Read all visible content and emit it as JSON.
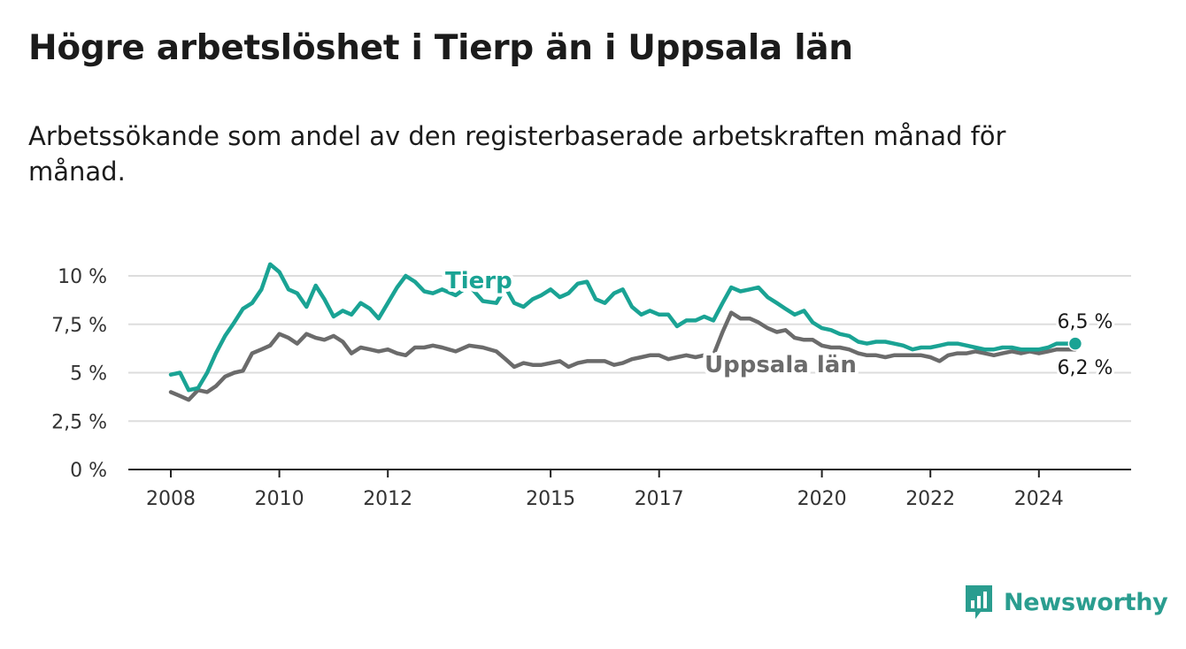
{
  "title": "Högre arbetslöshet i Tierp än i Uppsala län",
  "subtitle": "Arbetssökande som andel av den registerbaserade arbetskraften månad för månad.",
  "brand": {
    "name": "Newsworthy",
    "icon": "bar-chart-logo-icon",
    "color": "#2a9d8f"
  },
  "chart_data": {
    "type": "line",
    "title": "Högre arbetslöshet i Tierp än i Uppsala län",
    "subtitle": "Arbetssökande som andel av den registerbaserade arbetskraften månad för månad.",
    "x_ticks": [
      "2008",
      "2010",
      "2012",
      "2015",
      "2017",
      "2020",
      "2022",
      "2024"
    ],
    "y_ticks": [
      "0 %",
      "2,5 %",
      "5 %",
      "7,5 %",
      "10 %"
    ],
    "y_tick_values": [
      0,
      2.5,
      5,
      7.5,
      10
    ],
    "ylim": [
      0,
      10
    ],
    "xlim": [
      2007.2,
      2025.0
    ],
    "grid": true,
    "series": [
      {
        "name": "Tierp",
        "color": "#1aa394",
        "end_label": "6,5 %",
        "x": [
          2008.0,
          2008.17,
          2008.33,
          2008.5,
          2008.67,
          2008.83,
          2009.0,
          2009.17,
          2009.33,
          2009.5,
          2009.67,
          2009.83,
          2010.0,
          2010.17,
          2010.33,
          2010.5,
          2010.67,
          2010.83,
          2011.0,
          2011.17,
          2011.33,
          2011.5,
          2011.67,
          2011.83,
          2012.0,
          2012.17,
          2012.33,
          2012.5,
          2012.67,
          2012.83,
          2013.0,
          2013.25,
          2013.5,
          2013.75,
          2014.0,
          2014.17,
          2014.33,
          2014.5,
          2014.67,
          2014.83,
          2015.0,
          2015.17,
          2015.33,
          2015.5,
          2015.67,
          2015.83,
          2016.0,
          2016.17,
          2016.33,
          2016.5,
          2016.67,
          2016.83,
          2017.0,
          2017.17,
          2017.33,
          2017.5,
          2017.67,
          2017.83,
          2018.0,
          2018.17,
          2018.33,
          2018.5,
          2018.67,
          2018.83,
          2019.0,
          2019.17,
          2019.33,
          2019.5,
          2019.67,
          2019.83,
          2020.0,
          2020.17,
          2020.33,
          2020.5,
          2020.67,
          2020.83,
          2021.0,
          2021.17,
          2021.33,
          2021.5,
          2021.67,
          2021.83,
          2022.0,
          2022.17,
          2022.33,
          2022.5,
          2022.67,
          2022.83,
          2023.0,
          2023.17,
          2023.33,
          2023.5,
          2023.67,
          2023.83,
          2024.0,
          2024.17,
          2024.33,
          2024.5,
          2024.67
        ],
        "values": [
          4.9,
          5.0,
          4.1,
          4.2,
          5.0,
          6.0,
          6.9,
          7.6,
          8.3,
          8.6,
          9.3,
          10.6,
          10.2,
          9.3,
          9.1,
          8.4,
          9.5,
          8.8,
          7.9,
          8.2,
          8.0,
          8.6,
          8.3,
          7.8,
          8.6,
          9.4,
          10.0,
          9.7,
          9.2,
          9.1,
          9.3,
          9.0,
          9.5,
          8.7,
          8.6,
          9.4,
          8.6,
          8.4,
          8.8,
          9.0,
          9.3,
          8.9,
          9.1,
          9.6,
          9.7,
          8.8,
          8.6,
          9.1,
          9.3,
          8.4,
          8.0,
          8.2,
          8.0,
          8.0,
          7.4,
          7.7,
          7.7,
          7.9,
          7.7,
          8.6,
          9.4,
          9.2,
          9.3,
          9.4,
          8.9,
          8.6,
          8.3,
          8.0,
          8.2,
          7.6,
          7.3,
          7.2,
          7.0,
          6.9,
          6.6,
          6.5,
          6.6,
          6.6,
          6.5,
          6.4,
          6.2,
          6.3,
          6.3,
          6.4,
          6.5,
          6.5,
          6.4,
          6.3,
          6.2,
          6.2,
          6.3,
          6.3,
          6.2,
          6.2,
          6.2,
          6.3,
          6.5,
          6.5,
          6.5
        ]
      },
      {
        "name": "Uppsala län",
        "color": "#6b6b6b",
        "end_label": "6,2 %",
        "x": [
          2008.0,
          2008.17,
          2008.33,
          2008.5,
          2008.67,
          2008.83,
          2009.0,
          2009.17,
          2009.33,
          2009.5,
          2009.67,
          2009.83,
          2010.0,
          2010.17,
          2010.33,
          2010.5,
          2010.67,
          2010.83,
          2011.0,
          2011.17,
          2011.33,
          2011.5,
          2011.67,
          2011.83,
          2012.0,
          2012.17,
          2012.33,
          2012.5,
          2012.67,
          2012.83,
          2013.0,
          2013.25,
          2013.5,
          2013.75,
          2014.0,
          2014.17,
          2014.33,
          2014.5,
          2014.67,
          2014.83,
          2015.0,
          2015.17,
          2015.33,
          2015.5,
          2015.67,
          2015.83,
          2016.0,
          2016.17,
          2016.33,
          2016.5,
          2016.67,
          2016.83,
          2017.0,
          2017.17,
          2017.33,
          2017.5,
          2017.67,
          2017.83,
          2018.0,
          2018.17,
          2018.33,
          2018.5,
          2018.67,
          2018.83,
          2019.0,
          2019.17,
          2019.33,
          2019.5,
          2019.67,
          2019.83,
          2020.0,
          2020.17,
          2020.33,
          2020.5,
          2020.67,
          2020.83,
          2021.0,
          2021.17,
          2021.33,
          2021.5,
          2021.67,
          2021.83,
          2022.0,
          2022.17,
          2022.33,
          2022.5,
          2022.67,
          2022.83,
          2023.0,
          2023.17,
          2023.33,
          2023.5,
          2023.67,
          2023.83,
          2024.0,
          2024.17,
          2024.33,
          2024.5,
          2024.67
        ],
        "values": [
          4.0,
          3.8,
          3.6,
          4.1,
          4.0,
          4.3,
          4.8,
          5.0,
          5.1,
          6.0,
          6.2,
          6.4,
          7.0,
          6.8,
          6.5,
          7.0,
          6.8,
          6.7,
          6.9,
          6.6,
          6.0,
          6.3,
          6.2,
          6.1,
          6.2,
          6.0,
          5.9,
          6.3,
          6.3,
          6.4,
          6.3,
          6.1,
          6.4,
          6.3,
          6.1,
          5.7,
          5.3,
          5.5,
          5.4,
          5.4,
          5.5,
          5.6,
          5.3,
          5.5,
          5.6,
          5.6,
          5.6,
          5.4,
          5.5,
          5.7,
          5.8,
          5.9,
          5.9,
          5.7,
          5.8,
          5.9,
          5.8,
          5.9,
          5.9,
          7.1,
          8.1,
          7.8,
          7.8,
          7.6,
          7.3,
          7.1,
          7.2,
          6.8,
          6.7,
          6.7,
          6.4,
          6.3,
          6.3,
          6.2,
          6.0,
          5.9,
          5.9,
          5.8,
          5.9,
          5.9,
          5.9,
          5.9,
          5.8,
          5.6,
          5.9,
          6.0,
          6.0,
          6.1,
          6.0,
          5.9,
          6.0,
          6.1,
          6.0,
          6.1,
          6.0,
          6.1,
          6.2,
          6.2,
          6.2
        ]
      }
    ]
  }
}
